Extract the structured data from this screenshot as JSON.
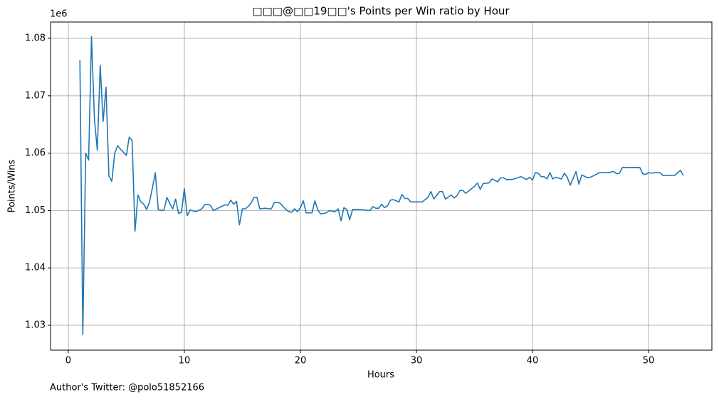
{
  "chart_data": {
    "type": "line",
    "title": "□□□@□□19□□'s Points per Win ratio by Hour",
    "x_label": "Hours",
    "y_label": "Points/Wins",
    "y_offset_label": "1e6",
    "footnote": "Author's Twitter: @polo51852166",
    "xlim": [
      -1.53,
      55.46
    ],
    "ylim": [
      1.02567,
      1.08285
    ],
    "xticks": [
      0,
      10,
      20,
      30,
      40,
      50
    ],
    "yticks": [
      1.03,
      1.04,
      1.05,
      1.06,
      1.07,
      1.08
    ],
    "grid": true,
    "x": [
      1.0,
      1.25,
      1.5,
      1.75,
      2.0,
      2.25,
      2.5,
      2.75,
      3.0,
      3.25,
      3.5,
      3.75,
      4.0,
      4.25,
      4.5,
      5.0,
      5.25,
      5.5,
      5.75,
      6.0,
      6.25,
      6.5,
      6.75,
      7.0,
      7.25,
      7.5,
      7.75,
      8.0,
      8.25,
      8.5,
      8.75,
      9.0,
      9.25,
      9.5,
      9.75,
      10.0,
      10.25,
      10.5,
      11.0,
      11.5,
      11.75,
      12.0,
      12.25,
      12.5,
      13.0,
      13.5,
      13.75,
      14.0,
      14.25,
      14.5,
      14.75,
      15.0,
      15.25,
      15.5,
      15.75,
      16.0,
      16.25,
      16.5,
      17.0,
      17.25,
      17.5,
      17.75,
      18.0,
      18.25,
      18.5,
      18.75,
      19.0,
      19.25,
      19.5,
      19.75,
      20.0,
      20.25,
      20.5,
      21.0,
      21.25,
      21.5,
      21.75,
      22.25,
      22.5,
      23.0,
      23.25,
      23.5,
      23.75,
      24.0,
      24.25,
      24.5,
      25.0,
      26.0,
      26.25,
      26.5,
      26.75,
      27.0,
      27.25,
      27.5,
      27.75,
      28.0,
      28.5,
      28.75,
      29.0,
      29.25,
      29.5,
      30.0,
      30.5,
      31.0,
      31.25,
      31.5,
      32.0,
      32.25,
      32.5,
      33.0,
      33.25,
      33.5,
      33.75,
      34.0,
      34.25,
      35.0,
      35.25,
      35.5,
      35.75,
      36.25,
      36.5,
      37.0,
      37.25,
      37.5,
      37.75,
      38.25,
      39.0,
      39.5,
      39.75,
      40.0,
      40.25,
      40.5,
      40.75,
      41.0,
      41.25,
      41.5,
      41.75,
      42.0,
      42.5,
      42.75,
      43.0,
      43.25,
      43.75,
      44.0,
      44.25,
      44.75,
      45.0,
      45.5,
      45.75,
      46.5,
      47.0,
      47.25,
      47.5,
      47.75,
      49.25,
      49.5,
      49.75,
      50.0,
      50.25,
      50.5,
      51.0,
      51.25,
      52.25,
      52.75,
      53.0
    ],
    "series": [
      {
        "name": "Points/Wins",
        "color": "#1f77b4",
        "values": [
          1.0762,
          1.0284,
          1.06,
          1.0588,
          1.0803,
          1.066,
          1.0605,
          1.0753,
          1.0655,
          1.0715,
          1.056,
          1.0551,
          1.06,
          1.0613,
          1.0607,
          1.0596,
          1.0628,
          1.0622,
          1.0464,
          1.0527,
          1.0515,
          1.0511,
          1.0502,
          1.0515,
          1.054,
          1.0566,
          1.0502,
          1.05,
          1.0501,
          1.0523,
          1.0512,
          1.0503,
          1.052,
          1.0495,
          1.0497,
          1.0538,
          1.0491,
          1.0501,
          1.0498,
          1.0503,
          1.051,
          1.0511,
          1.0509,
          1.05,
          1.0505,
          1.051,
          1.0509,
          1.0518,
          1.0511,
          1.0516,
          1.0475,
          1.0503,
          1.0503,
          1.0507,
          1.0513,
          1.0523,
          1.0523,
          1.0503,
          1.0504,
          1.0503,
          1.0503,
          1.0514,
          1.0514,
          1.0513,
          1.0507,
          1.0502,
          1.0498,
          1.0497,
          1.0503,
          1.0498,
          1.0505,
          1.0517,
          1.0496,
          1.0496,
          1.0517,
          1.0501,
          1.0494,
          1.0496,
          1.05,
          1.0498,
          1.0503,
          1.0482,
          1.0505,
          1.0502,
          1.0484,
          1.0502,
          1.0502,
          1.05,
          1.0507,
          1.0504,
          1.0504,
          1.0511,
          1.0505,
          1.0508,
          1.0518,
          1.0519,
          1.0515,
          1.0528,
          1.0521,
          1.0521,
          1.0515,
          1.0515,
          1.0515,
          1.0523,
          1.0533,
          1.052,
          1.0533,
          1.0533,
          1.052,
          1.0527,
          1.0522,
          1.0526,
          1.0535,
          1.0535,
          1.053,
          1.0542,
          1.0548,
          1.0537,
          1.0547,
          1.0548,
          1.0555,
          1.055,
          1.0557,
          1.0557,
          1.0554,
          1.0554,
          1.0559,
          1.0554,
          1.0558,
          1.0553,
          1.0566,
          1.0565,
          1.0559,
          1.0559,
          1.0555,
          1.0566,
          1.0555,
          1.0558,
          1.0555,
          1.0565,
          1.0558,
          1.0544,
          1.0568,
          1.0546,
          1.0562,
          1.0557,
          1.0558,
          1.0563,
          1.0566,
          1.0566,
          1.0568,
          1.0564,
          1.0565,
          1.0575,
          1.0575,
          1.0564,
          1.0563,
          1.0566,
          1.0565,
          1.0566,
          1.0566,
          1.0561,
          1.0561,
          1.057,
          1.0561
        ]
      }
    ]
  }
}
